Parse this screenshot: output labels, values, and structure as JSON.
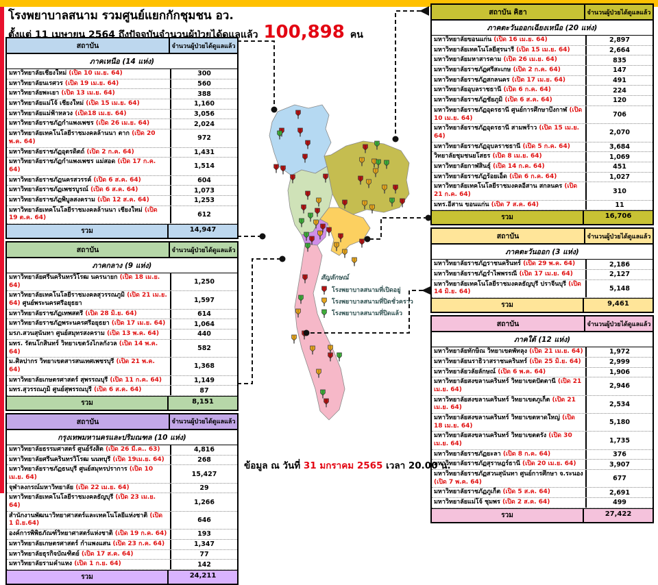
{
  "header": {
    "title": "โรงพยาบาลสนาม รวมศูนย์แยกกักชุมชน อว.",
    "subtitle": "ตั้งแต่  11 เมษายน 2564 ถึงปัจจุบันจำนวนผู้ป่วยได้ดูแลแล้ว",
    "total": "100,898",
    "unit": "คน"
  },
  "labels": {
    "institution": "สถาบัน",
    "institution_ne": "สถาบัน คิฮา",
    "count": "จำนวนผู้ป่วยได้ดูแลแล้ว",
    "total": "รวม"
  },
  "footer": {
    "prefix": "ข้อมูล ณ วันที่",
    "date": "31  มกราคม 2565",
    "suffix": "เวลา  20.00 น."
  },
  "legend": {
    "title": "สัญลักษณ์",
    "items": [
      {
        "name": "open",
        "color": "#b51414",
        "label": "โรงพยาบาลสนามที่เปิดอยู่"
      },
      {
        "name": "temporarily-closed",
        "color": "#e6a51e",
        "label": "โรงพยาบาลสนามที่ปิดชั่วคราว"
      },
      {
        "name": "closed",
        "color": "#3fae3a",
        "label": "โรงพยาบาลสนามที่ปิดแล้ว"
      }
    ]
  },
  "map_colors": {
    "north": "#b5d9f2",
    "northeast": "#c5bd50",
    "central": "#cfe2b8",
    "bangkok": "#cf8ee8",
    "east": "#fcd060",
    "south": "#f6b8c8"
  },
  "tables": [
    {
      "id": "north",
      "region": "ภาคเหนือ (14 แห่ง)",
      "accent": "#bdd7ee",
      "rows": [
        {
          "name": "มหาวิทยาลัยเชียงใหม่",
          "date": "(เปิด 10 เม.ย. 64)",
          "count": "300"
        },
        {
          "name": "มหาวิทยาลัยนเรศวร",
          "date": "(เปิด 19 เม.ย. 64)",
          "count": "560"
        },
        {
          "name": "มหาวิทยาลัยพะเยา",
          "date": "(เปิด 13 เม.ย. 64)",
          "count": "388"
        },
        {
          "name": "มหาวิทยาลัยแม่โจ้ เชียงใหม่",
          "date": "(เปิด 15 เม.ย. 64)",
          "count": "1,160"
        },
        {
          "name": "มหาวิทยาลัยแม่ฟ้าหลวง",
          "date": "(เปิด18 เม.ย. 64)",
          "count": "3,056"
        },
        {
          "name": "มหาวิทยาลัยราชภัฏกำแพงเพชร",
          "date": "(เปิด 26 เม.ย. 64)",
          "count": "2,024"
        },
        {
          "name": "มหาวิทยาลัยเทคโนโลยีราชมงคลล้านนา ตาก",
          "date": "(เปิด 20 พ.ค. 64)",
          "count": "972"
        },
        {
          "name": "มหาวิทยาลัยราชภัฏอุตรดิตถ์",
          "date": "(เปิด 2 ก.ค. 64)",
          "count": "1,431"
        },
        {
          "name": "มหาวิทยาลัยราชภัฏกำแพงเพชร แม่สอด",
          "date": "(เปิด 17 ก.ค. 64)",
          "count": "1,514"
        },
        {
          "name": "มหาวิทยาลัยราชภัฏนครสวรรค์",
          "date": "(เปิด 6 ส.ค. 64)",
          "count": "604"
        },
        {
          "name": "มหาวิทยาลัยราชภัฏเพชรบูรณ์",
          "date": "(เปิด 6 ส.ค. 64)",
          "count": "1,073"
        },
        {
          "name": "มหาวิทยาลัยราชภัฏพิบูลสงคราม",
          "date": "(เปิด 12 ส.ค. 64)",
          "count": "1,253"
        },
        {
          "name": "มหาวิทยาลัยเทคโนโลยีราชมงคลล้านนา เชียงใหม่",
          "date": "(เปิด 19 ต.ค. 64)",
          "count": "612"
        }
      ],
      "total": "14,947"
    },
    {
      "id": "central",
      "region": "ภาคกลาง (9 แห่ง)",
      "accent": "#b6d7a8",
      "rows": [
        {
          "name": "มหาวิทยาลัยศรีนครินทรวิโรฒ นครนายก",
          "date": "(เปิด 18 เม.ย. 64)",
          "count": "1,250"
        },
        {
          "name": "มหาวิทยาลัยเทคโนโลยีราชมงคลสุวรรณภูมิ",
          "date": "(เปิด 21 เม.ย. 64)",
          "name2": "ศูนย์พระนครศรีอยุธยา",
          "count": "1,597"
        },
        {
          "name": "มหาวิทยาลัยราชภัฏเทพสตรี",
          "date": "(เปิด 28 มิ.ย. 64)",
          "count": "614"
        },
        {
          "name": "มหาวิทยาลัยราชภัฏพระนครศรีอยุธยา",
          "date": "(เปิด 17 เม.ย. 64)",
          "count": "1,064"
        },
        {
          "name": "มรภ.สวนสุนันทา ศูนย์สมุทรสงคราม",
          "date": "(เปิด 13 พ.ค. 64)",
          "count": "440"
        },
        {
          "name": "มทร. รัตนโกสินทร์  วิทยาเขตวังไกลกังวล",
          "date": "(เปิด 14 พ.ค. 64)",
          "count": "582"
        },
        {
          "name": "ม.ศิลปากร วิทยาเขตสารสนเทศเพชรบุรี",
          "date": "(เปิด 21 พ.ค. 64)",
          "count": "1,368"
        },
        {
          "name": "มหาวิทยาลัยเกษตรศาสตร์  สุพรรณบุรี",
          "date": "(เปิด 11 ก.ค. 64)",
          "count": "1,149"
        },
        {
          "name": "มทร.สุวรรณภูมิ ศูนย์สุพรรณบุรี",
          "date": "(เปิด 6 ส.ค. 64)",
          "count": "87"
        }
      ],
      "total": "8,151"
    },
    {
      "id": "bangkok",
      "region": "กรุงเทพมหานครและปริมณฑล (10 แห่ง)",
      "accent": "#c3a8e8",
      "total_accent": "#d9b3ff",
      "rows": [
        {
          "name": "มหาวิทยาลัยธรรมศาสตร์ ศูนย์รังสิต",
          "date": "(เปิด 26 มี.ค.. 63)",
          "count": "4,816"
        },
        {
          "name": "มหาวิทยาลัยศรีนครินทรวิโรฒ นนทบุรี",
          "date": "(เปิด 19เม.ย. 64)",
          "count": "268"
        },
        {
          "name": "มหาวิทยาลัยราชภัฏธนบุรี ศูนย์สมุทรปราการ",
          "date": "(เปิด 10 เม.ย. 64)",
          "count": "15,427"
        },
        {
          "name": "จุฬาลงกรณ์มหาวิทยาลัย",
          "date": "(เปิด 22 เม.ย. 64)",
          "count": "29"
        },
        {
          "name": "มหาวิทยาลัยเทคโนโลยีราชมงคลธัญบุรี",
          "date": "(เปิด 23 เม.ย. 64)",
          "count": "1,266"
        },
        {
          "name": "สำนักงานพัฒนาวิทยาศาสตร์และเทคโนโลยีแห่งชาติ",
          "date": "(เปิด 1 มิ.ย.64)",
          "count": "646"
        },
        {
          "name": "องค์การพิพิธภัณฑ์วิทยาศาสตร์แห่งชาติ",
          "date": "(เปิด  19 ก.ค. 64)",
          "count": "193"
        },
        {
          "name": "มหาวิทยาลัยเกษตรศาสตร์  กำแพงแสน",
          "date": "(เปิด 23 ก.ค. 64)",
          "count": "1,347"
        },
        {
          "name": "มหาวิทยาลัยธุรกิจบัณฑิตย์",
          "date": "(เปิด 17 ส.ค. 64)",
          "count": "77"
        },
        {
          "name": "มหาวิทยาลัยรามคำแหง",
          "date": "(เปิด 1 ก.ย. 64)",
          "count": "142"
        }
      ],
      "total": "24,211"
    },
    {
      "id": "northeast",
      "region": "ภาคตะวันออกเฉียงเหนือ  (20 แห่ง)",
      "accent": "#c8c234",
      "ne_header": true,
      "rows": [
        {
          "name": "มหาวิทยาลัยขอนแก่น",
          "date": "(เปิด 16 เม.ย. 64)",
          "count": "2,897"
        },
        {
          "name": "มหาวิทยาลัยเทคโนโลยีสุรนารี",
          "date": "(เปิด 15 เม.ย. 64)",
          "count": "2,664"
        },
        {
          "name": "มหาวิทยาลัยมหาสารคาม",
          "date": "(เปิด 26 เม.ย. 64)",
          "count": "835"
        },
        {
          "name": "มหาวิทยาลัยราชภัฏศรีสะเกษ",
          "date": "(เปิด 2 ก.ค. 64)",
          "count": "147"
        },
        {
          "name": "มหาวิทยาลัยราชภัฏสกลนคร",
          "date": "(เปิด 17 เม.ย. 64)",
          "count": "491"
        },
        {
          "name": "มหาวิทยาลัยอุบลราชธานี",
          "date": "(เปิด 6 ก.ค. 64)",
          "count": "224"
        },
        {
          "name": "มหาวิทยาลัยราชภัฏชัยภูมิ",
          "date": "(เปิด 6 ส.ค. 64)",
          "count": "120"
        },
        {
          "name": "มหาวิทยาลัยราชภัฏอุดรธานี ศูนย์การศึกษาบึงกาฬ",
          "date": "(เปิด 10 เม.ย. 64)",
          "count": "706"
        },
        {
          "name": "มหาวิทยาลัยราชภัฏอุดรธานี สามพร้าว",
          "date": "(เปิด 15 เม.ย. 64)",
          "count": "2,070"
        },
        {
          "name": "มหาวิทยาลัยราชภัฏอุบลราชธานี",
          "date": "(เปิด 5 ก.ค. 64)",
          "count": "3,684"
        },
        {
          "name": "วิทยาลัยชุมชนยโสธร",
          "date": "(เปิด 8 เม.ย. 64)",
          "count": "1,069"
        },
        {
          "name": "มหาวิทยาลัยกาฬสินธุ์",
          "date": "(เปิด 14 ก.ค. 64)",
          "count": "451"
        },
        {
          "name": "มหาวิทยาลัยราชภัฏร้อยเอ็ด",
          "date": "(เปิด 6 ก.ค. 64)",
          "count": "1,027"
        },
        {
          "name": "มหาวิทยาลัยเทคโนโลยีราชมงคลอีสาน สกลนคร",
          "date": "(เปิด 21 ก.ค. 64)",
          "count": "310"
        },
        {
          "name": "มทร.อีสาน ขอนแก่น",
          "date": "(เปิด 7 ส.ค. 64)",
          "count": "11"
        }
      ],
      "total": "16,706"
    },
    {
      "id": "east",
      "region": "ภาคตะวันออก (3 แห่ง)",
      "accent": "#ffe599",
      "rows": [
        {
          "name": "มหาวิทยาลัยราชภัฏราชนครินทร์",
          "date": "(เปิด 29 พ.ค. 64)",
          "count": "2,186"
        },
        {
          "name": "มหาวิทยาลัยราชภัฏรำไพพรรณี",
          "date": "(เปิด 17 เม.ย. 64)",
          "count": "2,127"
        },
        {
          "name": "มหาวิทยาลัยเทคโนโลยีราชมงคลธัญบุรี ปราจีนบุรี",
          "date": "(เปิด 14 มิ.ย. 64)",
          "count": "5,148"
        }
      ],
      "total": "9,461"
    },
    {
      "id": "south",
      "region": "ภาคใต้  (12 แห่ง)",
      "accent": "#f5c2dc",
      "rows": [
        {
          "name": "มหาวิทยาลัยทักษิณ  วิทยาเขตพัทลุง",
          "date": "(เปิด 21 เม.ย. 64)",
          "count": "1,972"
        },
        {
          "name": "มหาวิทยาลัยนราธิวาสราชนครินทร์",
          "date": "(เปิด 25 มิ.ย. 64)",
          "count": "2,999"
        },
        {
          "name": "มหาวิทยาลัยวลัยลักษณ์",
          "date": "(เปิด 6 พ.ค. 64)",
          "count": "1,906"
        },
        {
          "name": "มหาวิทยาลัยสงขลานครินทร์  วิทยาเขตปัตตานี",
          "date": "(เปิด 21 เม.ย. 64)",
          "count": "2,946"
        },
        {
          "name": "มหาวิทยาลัยสงขลานครินทร์  วิทยาเขตภูเก็ต",
          "date": "(เปิด 21 เม.ย. 64)",
          "count": "2,534"
        },
        {
          "name": "มหาวิทยาลัยสงขลานครินทร์  วิทยาเขตหาดใหญ่",
          "date": "(เปิด 18 เม.ย. 64)",
          "count": "5,180"
        },
        {
          "name": "มหาวิทยาลัยสงขลานครินทร์  วิทยาเขตตรัง",
          "date": "(เปิด  30 เม.ย. 64)",
          "count": "1,735"
        },
        {
          "name": "มหาวิทยาลัยราชภัฏยะลา",
          "date": "(เปิด  8 ก.ค. 64)",
          "count": "376"
        },
        {
          "name": "มหาวิทยาลัยราชภัฏสุราษฎร์ธานี",
          "date": "(เปิด 20 เม.ย. 64)",
          "count": "3,907"
        },
        {
          "name": "มหาวิทยาลัยราชภัฏสวนสุนันทา  ศูนย์การศึกษา จ.ระนอง",
          "date": "(เปิด 7 พ.ค. 64)",
          "count": "677"
        },
        {
          "name": "มหาวิทยาลัยราชภัฏภูเก็ต",
          "date": "(เปิด 5 ส.ค. 64)",
          "count": "2,691"
        },
        {
          "name": "มหาวิทยาลัยแม่โจ้  ชุมพร",
          "date": "(เปิด 2 ส.ค. 64)",
          "count": "499"
        }
      ],
      "total": "27,422"
    }
  ]
}
